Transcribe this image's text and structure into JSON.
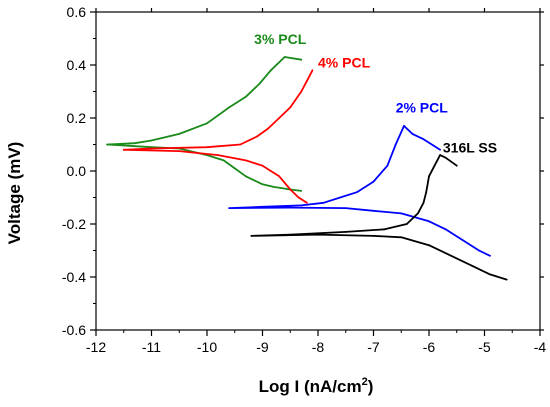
{
  "chart_data": {
    "type": "line",
    "xlabel": "Log I (nA/cm",
    "xlabel_sup": "2",
    "xlabel_suffix": ")",
    "ylabel": "Voltage (mV)",
    "xlim": [
      -12,
      -4
    ],
    "ylim": [
      -0.6,
      0.6
    ],
    "xticks": [
      -12,
      -11,
      -10,
      -9,
      -8,
      -7,
      -6,
      -5,
      -4
    ],
    "yticks": [
      -0.6,
      -0.4,
      -0.2,
      0.0,
      0.2,
      0.4,
      0.6
    ],
    "xtick_labels": [
      "-12",
      "-11",
      "-10",
      "-9",
      "-8",
      "-7",
      "-6",
      "-5",
      "-4"
    ],
    "ytick_labels": [
      "-0.6",
      "-0.4",
      "-0.2",
      "0.0",
      "0.2",
      "0.4",
      "0.6"
    ],
    "grid": false,
    "series": [
      {
        "name": "3% PCL",
        "color": "#1a8a1a",
        "label_at": [
          -9.15,
          0.48
        ],
        "points": [
          [
            -8.3,
            0.42
          ],
          [
            -8.6,
            0.43
          ],
          [
            -8.85,
            0.38
          ],
          [
            -9.05,
            0.33
          ],
          [
            -9.3,
            0.28
          ],
          [
            -9.6,
            0.24
          ],
          [
            -10.0,
            0.18
          ],
          [
            -10.5,
            0.14
          ],
          [
            -11.0,
            0.115
          ],
          [
            -11.3,
            0.105
          ],
          [
            -11.8,
            0.1
          ],
          [
            -11.0,
            0.09
          ],
          [
            -10.5,
            0.085
          ],
          [
            -10.0,
            0.06
          ],
          [
            -9.7,
            0.04
          ],
          [
            -9.5,
            0.01
          ],
          [
            -9.3,
            -0.02
          ],
          [
            -9.0,
            -0.05
          ],
          [
            -8.8,
            -0.06
          ],
          [
            -8.5,
            -0.07
          ],
          [
            -8.3,
            -0.075
          ]
        ]
      },
      {
        "name": "4% PCL",
        "color": "#ff0000",
        "label_at": [
          -8.0,
          0.39
        ],
        "points": [
          [
            -8.1,
            0.38
          ],
          [
            -8.2,
            0.34
          ],
          [
            -8.3,
            0.3
          ],
          [
            -8.5,
            0.24
          ],
          [
            -8.7,
            0.2
          ],
          [
            -8.9,
            0.16
          ],
          [
            -9.1,
            0.13
          ],
          [
            -9.4,
            0.1
          ],
          [
            -10.0,
            0.09
          ],
          [
            -11.0,
            0.085
          ],
          [
            -11.5,
            0.08
          ],
          [
            -10.5,
            0.075
          ],
          [
            -9.8,
            0.06
          ],
          [
            -9.3,
            0.04
          ],
          [
            -9.0,
            0.02
          ],
          [
            -8.7,
            -0.02
          ],
          [
            -8.5,
            -0.07
          ],
          [
            -8.35,
            -0.1
          ],
          [
            -8.2,
            -0.12
          ]
        ]
      },
      {
        "name": "2% PCL",
        "color": "#0000ff",
        "label_at": [
          -6.6,
          0.22
        ],
        "points": [
          [
            -5.8,
            0.08
          ],
          [
            -6.1,
            0.12
          ],
          [
            -6.3,
            0.14
          ],
          [
            -6.45,
            0.17
          ],
          [
            -6.6,
            0.1
          ],
          [
            -6.75,
            0.02
          ],
          [
            -7.0,
            -0.04
          ],
          [
            -7.3,
            -0.08
          ],
          [
            -7.6,
            -0.1
          ],
          [
            -7.9,
            -0.12
          ],
          [
            -8.3,
            -0.13
          ],
          [
            -9.0,
            -0.135
          ],
          [
            -9.6,
            -0.14
          ],
          [
            -8.5,
            -0.138
          ],
          [
            -7.5,
            -0.14
          ],
          [
            -7.0,
            -0.15
          ],
          [
            -6.5,
            -0.16
          ],
          [
            -6.0,
            -0.19
          ],
          [
            -5.7,
            -0.22
          ],
          [
            -5.4,
            -0.26
          ],
          [
            -5.1,
            -0.3
          ],
          [
            -4.9,
            -0.32
          ]
        ]
      },
      {
        "name": "316L SS",
        "color": "#000000",
        "label_at": [
          -5.75,
          0.07
        ],
        "points": [
          [
            -5.5,
            0.02
          ],
          [
            -5.7,
            0.05
          ],
          [
            -5.8,
            0.06
          ],
          [
            -5.9,
            0.02
          ],
          [
            -6.0,
            -0.02
          ],
          [
            -6.05,
            -0.08
          ],
          [
            -6.1,
            -0.12
          ],
          [
            -6.2,
            -0.16
          ],
          [
            -6.4,
            -0.2
          ],
          [
            -6.8,
            -0.22
          ],
          [
            -7.5,
            -0.23
          ],
          [
            -8.5,
            -0.24
          ],
          [
            -9.2,
            -0.245
          ],
          [
            -8.0,
            -0.24
          ],
          [
            -7.0,
            -0.245
          ],
          [
            -6.5,
            -0.25
          ],
          [
            -6.0,
            -0.28
          ],
          [
            -5.6,
            -0.32
          ],
          [
            -5.2,
            -0.36
          ],
          [
            -4.9,
            -0.39
          ],
          [
            -4.6,
            -0.41
          ]
        ]
      }
    ]
  }
}
